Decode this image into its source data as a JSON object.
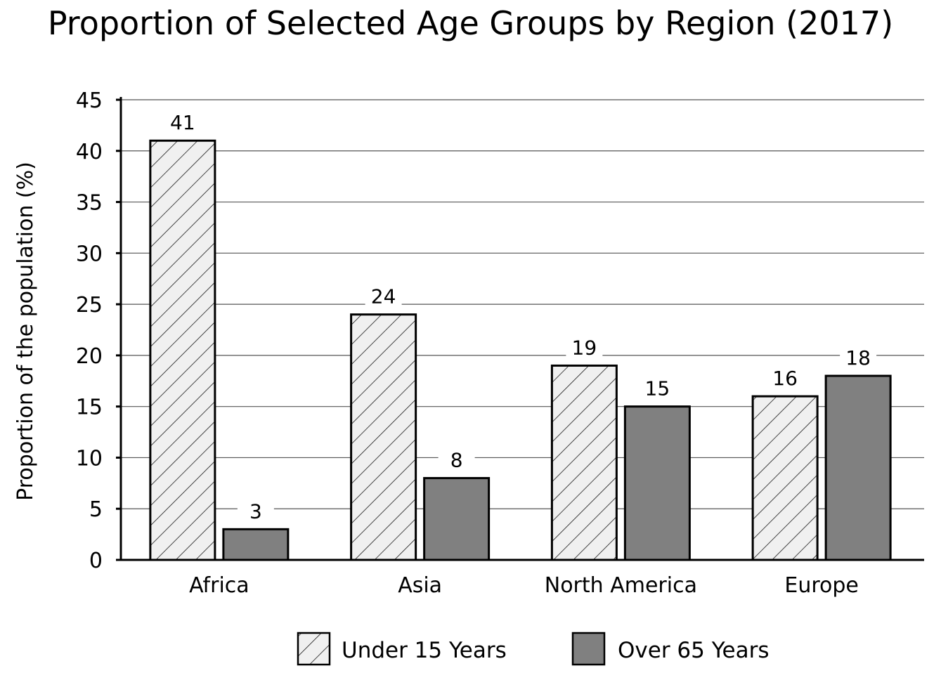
{
  "chart_data": {
    "type": "bar",
    "title": "Proportion of Selected Age Groups by Region (2017)",
    "xlabel": "",
    "ylabel": "Proportion of the population (%)",
    "categories": [
      "Africa",
      "Asia",
      "North America",
      "Europe"
    ],
    "series": [
      {
        "name": "Under 15 Years",
        "values": [
          41,
          24,
          19,
          16
        ],
        "fill": "hatched",
        "color": "#f0f0f0"
      },
      {
        "name": "Over 65 Years",
        "values": [
          3,
          8,
          15,
          18
        ],
        "fill": "solid",
        "color": "#808080"
      }
    ],
    "ylim": [
      0,
      45
    ],
    "yticks": [
      0,
      5,
      10,
      15,
      20,
      25,
      30,
      35,
      40,
      45
    ],
    "grid": true,
    "legend_position": "bottom",
    "data_labels": true
  }
}
